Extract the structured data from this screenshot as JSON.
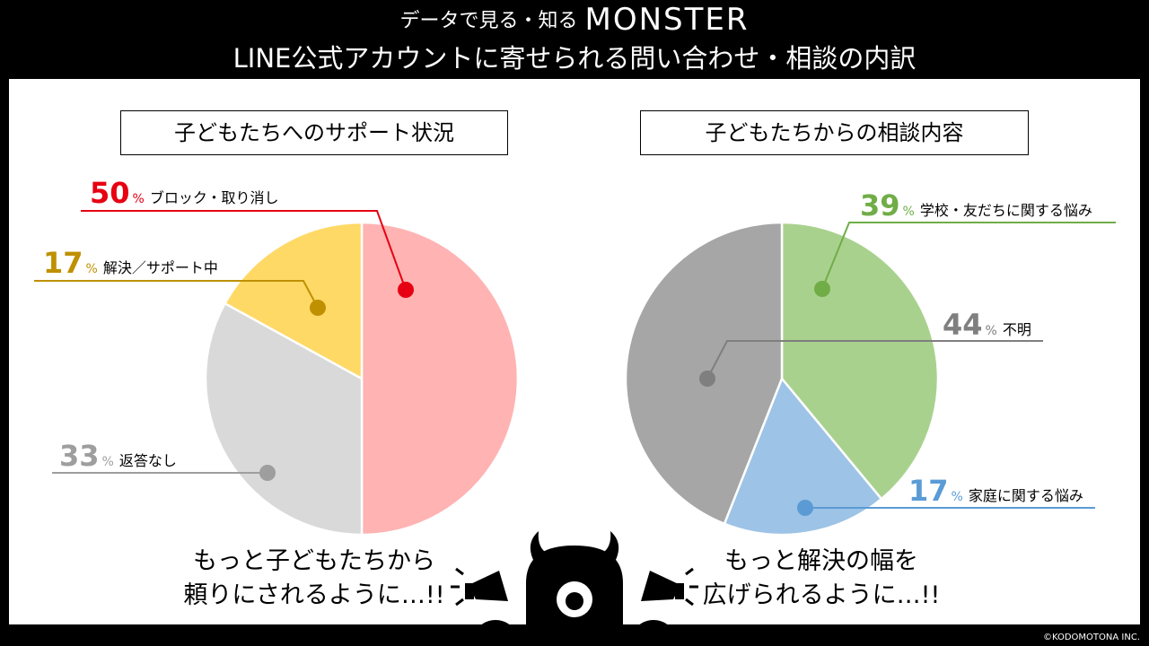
{
  "header": {
    "line1_prefix": "データで見る・知る",
    "line1_brand": "MONSTER",
    "line2": "LINE公式アカウントに寄せられる問い合わせ・相談の内訳"
  },
  "left": {
    "title": "子どもたちへのサポート状況",
    "message_line1": "もっと子どもたちから",
    "message_line2": "頼りにされるように…!!"
  },
  "right": {
    "title": "子どもたちからの相談内容",
    "message_line1": "もっと解決の幅を",
    "message_line2": "広げられるように…!!"
  },
  "chart_data": [
    {
      "type": "pie",
      "title": "子どもたちへのサポート状況",
      "slices": [
        {
          "label": "ブロック・取り消し",
          "value": 50,
          "color": "#ffb3b3",
          "dot_color": "#e60012",
          "label_color": "#e60012"
        },
        {
          "label": "返答なし",
          "value": 33,
          "color": "#d9d9d9",
          "dot_color": "#9e9e9e",
          "label_color": "#9e9e9e"
        },
        {
          "label": "解決／サポート中",
          "value": 17,
          "color": "#ffd966",
          "dot_color": "#bf9000",
          "label_color": "#bf9000"
        }
      ]
    },
    {
      "type": "pie",
      "title": "子どもたちからの相談内容",
      "slices": [
        {
          "label": "学校・友だちに関する悩み",
          "value": 39,
          "color": "#a9d18e",
          "dot_color": "#70ad47",
          "label_color": "#70ad47"
        },
        {
          "label": "家庭に関する悩み",
          "value": 17,
          "color": "#9dc3e6",
          "dot_color": "#5b9bd5",
          "label_color": "#5b9bd5"
        },
        {
          "label": "不明",
          "value": 44,
          "color": "#a6a6a6",
          "dot_color": "#7f7f7f",
          "label_color": "#7f7f7f"
        }
      ]
    }
  ],
  "footer": {
    "copyright": "©KODOMOTONA INC."
  }
}
